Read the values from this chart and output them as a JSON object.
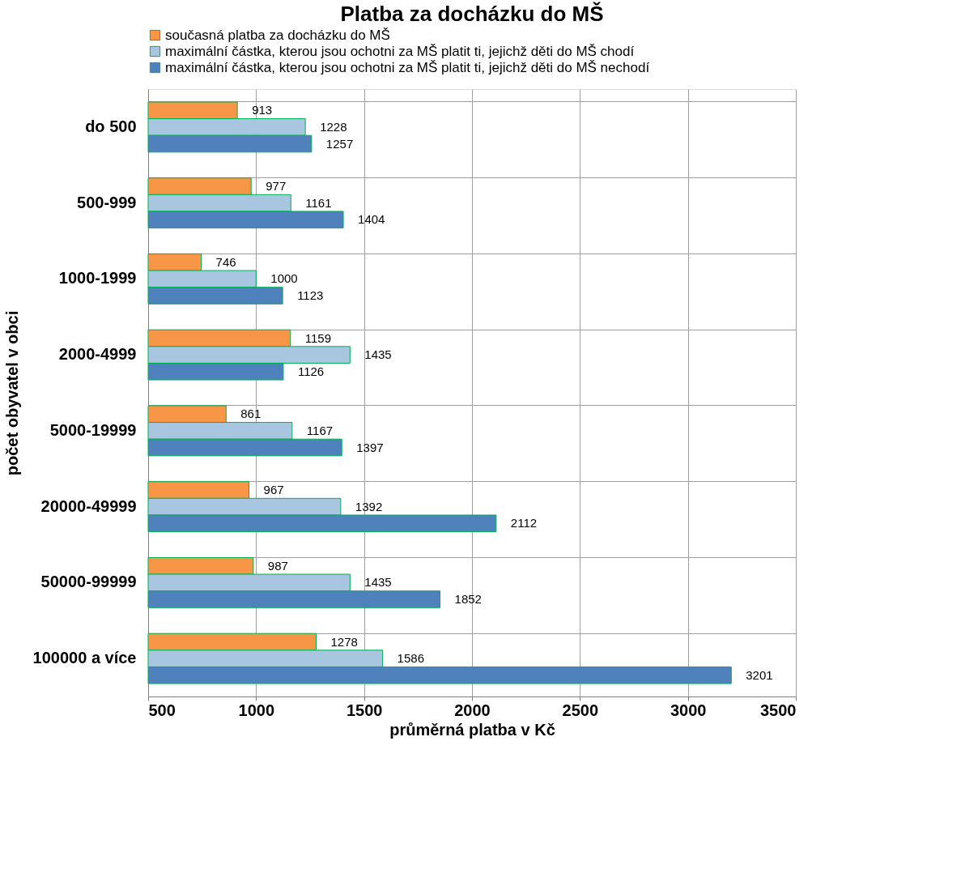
{
  "chart_data": {
    "type": "bar",
    "orientation": "horizontal",
    "title": "Platba za docházku do MŠ",
    "xlabel": "průměrná platba v Kč",
    "ylabel": "počet obyvatel v obci",
    "categories": [
      "do 500",
      "500-999",
      "1000-1999",
      "2000-4999",
      "5000-19999",
      "20000-49999",
      "50000-99999",
      "100000 a více"
    ],
    "series": [
      {
        "name": "současná platba za docházku do MŠ",
        "color": "#f79646",
        "values": [
          913,
          977,
          746,
          1159,
          861,
          967,
          987,
          1278
        ]
      },
      {
        "name": "maximální částka, kterou jsou ochotni za MŠ platit ti, jejichž děti do MŠ chodí",
        "color": "#a9c6e0",
        "values": [
          1228,
          1161,
          1000,
          1435,
          1167,
          1392,
          1435,
          1586
        ]
      },
      {
        "name": "maximální částka, kterou jsou ochotni za MŠ platit ti, jejichž děti do MŠ nechodí",
        "color": "#4f81bd",
        "values": [
          1257,
          1404,
          1123,
          1126,
          1397,
          2112,
          1852,
          3201
        ]
      }
    ],
    "xlim": [
      500,
      3500
    ],
    "xticks": [
      500,
      1000,
      1500,
      2000,
      2500,
      3000,
      3500
    ],
    "grid": true,
    "legend": "top",
    "data_labels": true
  }
}
